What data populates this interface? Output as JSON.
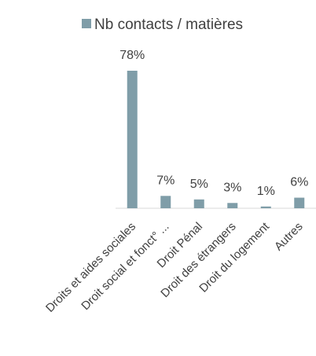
{
  "chart_data": {
    "type": "bar",
    "series": [
      {
        "name": "Nb contacts / matières",
        "values": [
          78,
          7,
          5,
          3,
          1,
          6
        ]
      }
    ],
    "categories": [
      "Droits et aides sociales",
      "Droit social et fonct° ...",
      "Droit Pénal",
      "Droit des étrangers",
      "Droit du logement",
      "Autres"
    ],
    "data_labels": [
      "78%",
      "7%",
      "5%",
      "3%",
      "1%",
      "6%"
    ],
    "ylim": [
      0,
      78
    ],
    "grid": false,
    "legend_position": "top",
    "colors": {
      "bar": "#7F9DA8",
      "axis": "#D9D9D9",
      "text": "#404040"
    }
  }
}
